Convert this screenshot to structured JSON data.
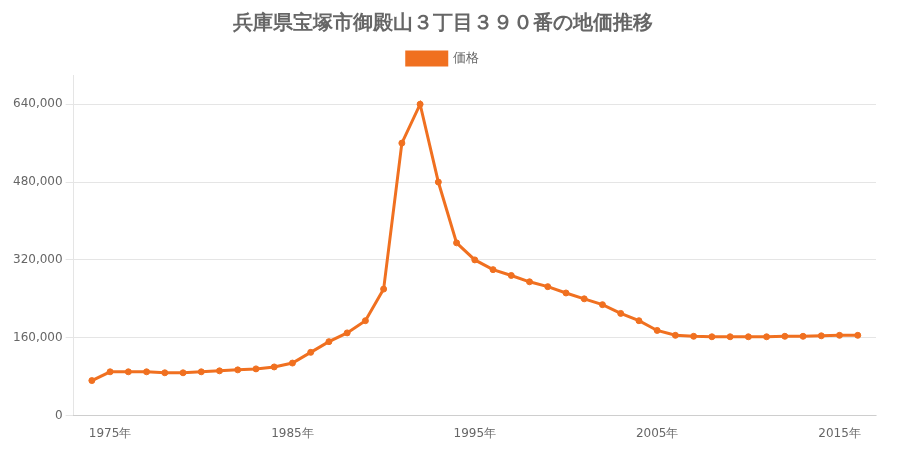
{
  "chart_data": {
    "type": "line",
    "title": "兵庫県宝塚市御殿山３丁目３９０番の地価推移",
    "x": [
      1974,
      1975,
      1976,
      1977,
      1978,
      1979,
      1980,
      1981,
      1982,
      1983,
      1984,
      1985,
      1986,
      1987,
      1988,
      1989,
      1990,
      1991,
      1992,
      1993,
      1994,
      1995,
      1996,
      1997,
      1998,
      1999,
      2000,
      2001,
      2002,
      2003,
      2004,
      2005,
      2006,
      2007,
      2008,
      2009,
      2010,
      2011,
      2012,
      2013,
      2014,
      2015,
      2016
    ],
    "series": [
      {
        "name": "価格",
        "color": "#f07020",
        "marker": "circle",
        "values": [
          72000,
          90000,
          90000,
          90000,
          88000,
          88000,
          90000,
          92000,
          94000,
          96000,
          100000,
          108000,
          130000,
          152000,
          170000,
          195000,
          260000,
          560000,
          640000,
          480000,
          355000,
          320000,
          300000,
          288000,
          275000,
          265000,
          252000,
          240000,
          228000,
          210000,
          195000,
          175000,
          165000,
          163000,
          162000,
          162000,
          162000,
          162000,
          163000,
          163000,
          164000,
          165000,
          165000
        ]
      }
    ],
    "xlim": [
      1973,
      2017
    ],
    "xticks": [
      {
        "value": 1975,
        "label": "1975年"
      },
      {
        "value": 1985,
        "label": "1985年"
      },
      {
        "value": 1995,
        "label": "1995年"
      },
      {
        "value": 2005,
        "label": "2005年"
      },
      {
        "value": 2015,
        "label": "2015年"
      }
    ],
    "ylim": [
      0,
      700000
    ],
    "yticks": [
      0,
      {
        "value": 160000,
        "label": "160,000"
      },
      {
        "value": 320000,
        "label": "320,000"
      },
      {
        "value": 480000,
        "label": "480,000"
      },
      {
        "value": 640000,
        "label": "640,000"
      }
    ],
    "grid": "y",
    "legend": "top"
  }
}
